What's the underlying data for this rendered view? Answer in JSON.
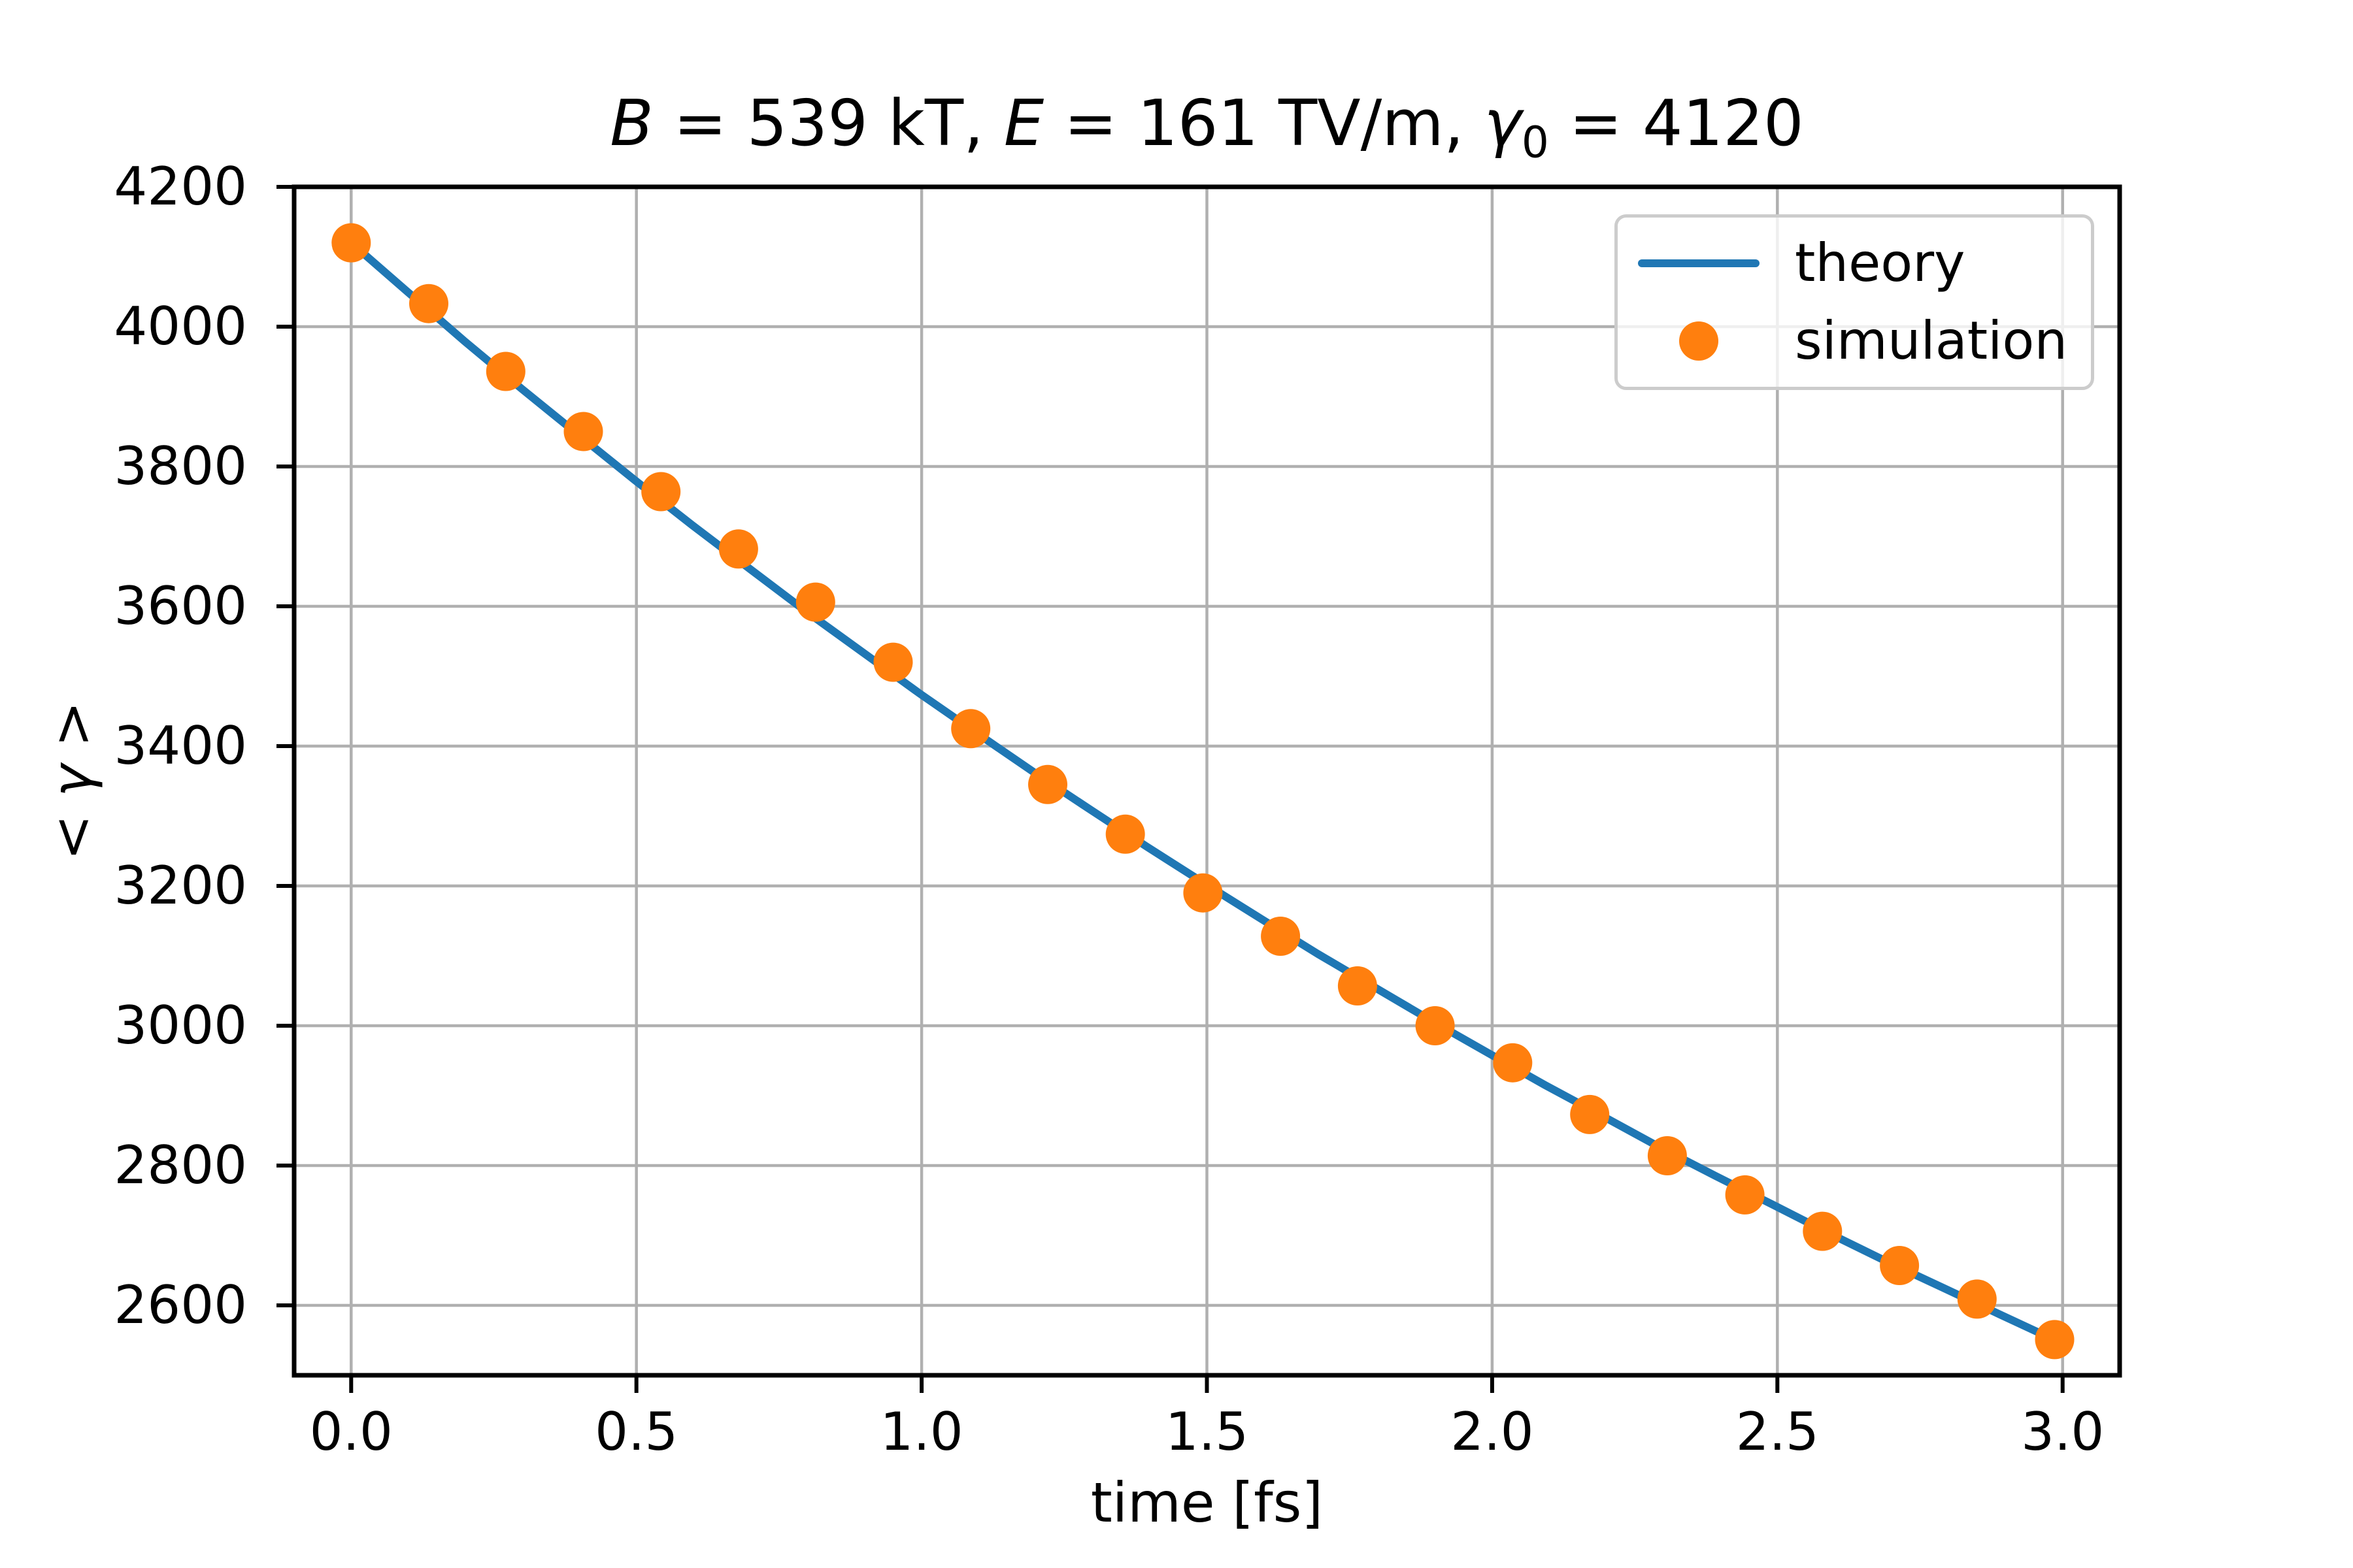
{
  "figure": {
    "title_text": "B = 539 kT, E = 161 TV/m, γ0 = 4120",
    "title_segments": [
      {
        "t": "B",
        "style": "italic"
      },
      {
        "t": " = 539 kT, "
      },
      {
        "t": "E",
        "style": "italic"
      },
      {
        "t": " = 161 TV/m, "
      },
      {
        "t": "γ",
        "style": "italic"
      },
      {
        "t": "0",
        "style": "sub"
      },
      {
        "t": " = 4120"
      }
    ],
    "ylabel_segments": [
      {
        "t": "< "
      },
      {
        "t": "γ",
        "style": "italic"
      },
      {
        "t": " >"
      }
    ],
    "background": "#ffffff"
  },
  "chart_data": {
    "type": "line",
    "title": "B = 539 kT, E = 161 TV/m, γ0 = 4120",
    "xlabel": "time [fs]",
    "ylabel": "<γ>",
    "xlim": [
      -0.1,
      3.1
    ],
    "ylim": [
      2500,
      4200
    ],
    "grid": true,
    "grid_color": "#b0b0b0",
    "spine_color": "#000000",
    "legend_position": "upper right",
    "xticks": {
      "values": [
        0.0,
        0.5,
        1.0,
        1.5,
        2.0,
        2.5,
        3.0
      ],
      "labels": [
        "0.0",
        "0.5",
        "1.0",
        "1.5",
        "2.0",
        "2.5",
        "3.0"
      ]
    },
    "yticks": {
      "values": [
        2600,
        2800,
        3000,
        3200,
        3400,
        3600,
        3800,
        4000,
        4200
      ],
      "labels": [
        "2600",
        "2800",
        "3000",
        "3200",
        "3400",
        "3600",
        "3800",
        "4000",
        "4200"
      ]
    },
    "series": [
      {
        "name": "theory",
        "kind": "line",
        "color": "#1f77b4",
        "linewidth": 12,
        "x": [
          0.0,
          0.1,
          0.199,
          0.299,
          0.399,
          0.498,
          0.598,
          0.698,
          0.797,
          0.897,
          0.997,
          1.096,
          1.196,
          1.296,
          1.395,
          1.495,
          1.595,
          1.694,
          1.794,
          1.894,
          1.993,
          2.093,
          2.193,
          2.292,
          2.392,
          2.492,
          2.591,
          2.691,
          2.791,
          2.89,
          2.99
        ],
        "y": [
          4120,
          4049,
          3979,
          3911,
          3845,
          3780,
          3716,
          3654,
          3593,
          3534,
          3475,
          3419,
          3363,
          3309,
          3256,
          3204,
          3153,
          3103,
          3055,
          3007,
          2961,
          2915,
          2871,
          2827,
          2785,
          2744,
          2703,
          2663,
          2625,
          2587,
          2549
        ]
      },
      {
        "name": "simulation",
        "kind": "scatter",
        "color": "#ff7f0e",
        "markersize": 60,
        "x": [
          0.0,
          0.136,
          0.271,
          0.407,
          0.543,
          0.679,
          0.814,
          0.95,
          1.086,
          1.221,
          1.357,
          1.493,
          1.629,
          1.764,
          1.9,
          2.036,
          2.171,
          2.307,
          2.443,
          2.579,
          2.714,
          2.85,
          2.986
        ],
        "y": [
          4120,
          4033,
          3936,
          3850,
          3764,
          3682,
          3606,
          3520,
          3425,
          3345,
          3274,
          3190,
          3128,
          3057,
          3000,
          2947,
          2873,
          2814,
          2758,
          2706,
          2657,
          2609,
          2551
        ]
      }
    ]
  }
}
